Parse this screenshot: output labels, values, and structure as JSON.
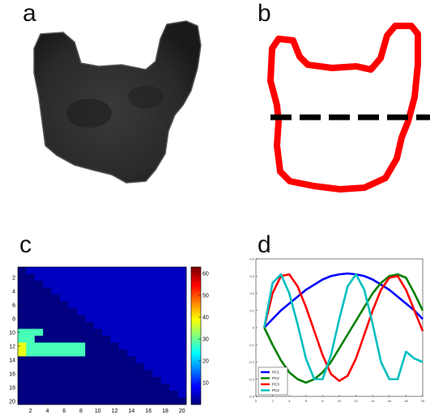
{
  "panels": {
    "a": {
      "label": "a"
    },
    "b": {
      "label": "b"
    },
    "c": {
      "label": "c"
    },
    "d": {
      "label": "d"
    }
  },
  "colors": {
    "dark_shape": "#262626",
    "outline": "#ff0000",
    "dashed_line": "#000000",
    "heat_low": "#00008f",
    "heat_mid": "#1f1fff"
  },
  "chart_data": [
    {
      "type": "heatmap",
      "panel": "c",
      "rows": 20,
      "cols": 20,
      "x_ticks": [
        "2",
        "4",
        "6",
        "8",
        "10",
        "12",
        "14",
        "16",
        "18",
        "20"
      ],
      "y_ticks": [
        "2",
        "4",
        "6",
        "8",
        "10",
        "12",
        "14",
        "16",
        "18",
        "20"
      ],
      "colorbar_ticks": [
        "10",
        "20",
        "30",
        "40",
        "50",
        "60"
      ],
      "colorbar_range": [
        0,
        63
      ],
      "colormap": "jet",
      "upper_value": 4,
      "lower_value": 0,
      "highlights": [
        {
          "row": 10,
          "col_start": 1,
          "col_end": 3,
          "value": 28
        },
        {
          "row": 11,
          "col_start": 1,
          "col_end": 2,
          "value": 28
        },
        {
          "row": 12,
          "col_start": 1,
          "col_end": 8,
          "value": 28
        },
        {
          "row": 12,
          "col_start": 1,
          "col_end": 1,
          "value": 38
        },
        {
          "row": 13,
          "col_start": 1,
          "col_end": 8,
          "value": 28
        },
        {
          "row": 13,
          "col_start": 1,
          "col_end": 1,
          "value": 38
        }
      ]
    },
    {
      "type": "line",
      "panel": "d",
      "x": [
        1,
        2,
        3,
        4,
        5,
        6,
        7,
        8,
        9,
        10,
        11,
        12,
        13,
        14,
        15,
        16,
        17,
        18,
        19,
        20
      ],
      "xlim": [
        0,
        20
      ],
      "ylim": [
        -0.4,
        0.4
      ],
      "x_ticks": [
        "0",
        "2",
        "4",
        "6",
        "8",
        "10",
        "12",
        "14",
        "16",
        "18",
        "20"
      ],
      "y_ticks": [
        "0.4",
        "0.3",
        "0.2",
        "0.1",
        "0",
        "-0.1",
        "-0.2",
        "-0.3",
        "-0.4"
      ],
      "series": [
        {
          "name": "PC1",
          "color": "#0000ff",
          "values": [
            0.0,
            0.05,
            0.1,
            0.14,
            0.18,
            0.22,
            0.25,
            0.28,
            0.3,
            0.31,
            0.315,
            0.31,
            0.3,
            0.28,
            0.25,
            0.22,
            0.18,
            0.14,
            0.1,
            0.05
          ]
        },
        {
          "name": "PC2",
          "color": "#008000",
          "values": [
            0.0,
            -0.1,
            -0.19,
            -0.26,
            -0.3,
            -0.32,
            -0.3,
            -0.26,
            -0.2,
            -0.12,
            -0.04,
            0.04,
            0.12,
            0.2,
            0.26,
            0.3,
            0.31,
            0.29,
            0.2,
            0.1
          ]
        },
        {
          "name": "PC3",
          "color": "#ff0000",
          "values": [
            0.0,
            0.2,
            0.3,
            0.31,
            0.24,
            0.12,
            -0.02,
            -0.16,
            -0.27,
            -0.31,
            -0.28,
            -0.18,
            -0.04,
            0.1,
            0.22,
            0.29,
            0.3,
            0.22,
            0.1,
            -0.02
          ]
        },
        {
          "name": "PC4",
          "color": "#00bfbf",
          "values": [
            0.0,
            0.26,
            0.31,
            0.2,
            0.02,
            -0.18,
            -0.3,
            -0.3,
            -0.16,
            0.05,
            0.24,
            0.31,
            0.22,
            0.02,
            -0.2,
            -0.3,
            -0.3,
            -0.14,
            -0.18,
            -0.2
          ]
        }
      ]
    }
  ]
}
